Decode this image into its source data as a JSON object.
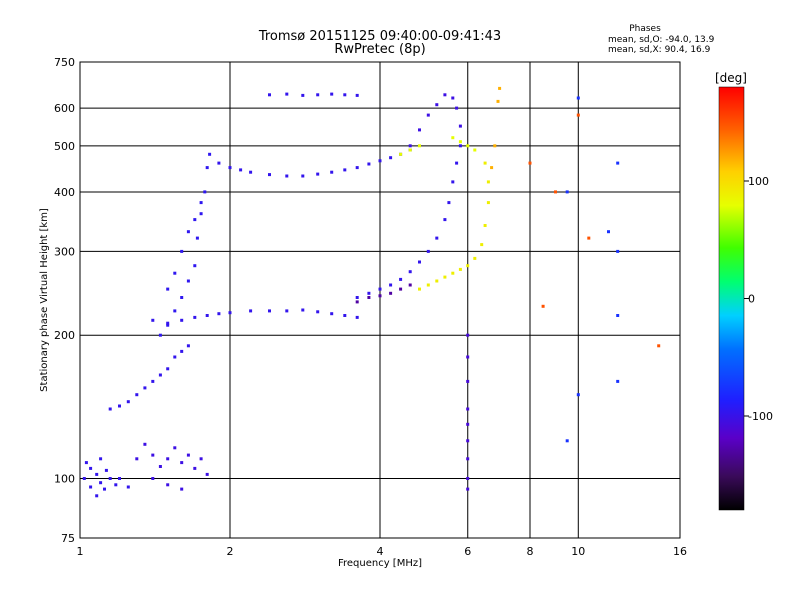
{
  "chart_data": {
    "type": "scatter",
    "title": "Tromsø 20151125 09:40:00-09:41:43",
    "subtitle": "RwPretec (8p)",
    "xlabel": "Frequency [MHz]",
    "ylabel": "Stationary phase Virtual Height [km]",
    "x_scale": "log",
    "y_scale": "log",
    "xlim": [
      1,
      16
    ],
    "ylim": [
      75,
      750
    ],
    "x_ticks": [
      1,
      2,
      4,
      6,
      8,
      10,
      16
    ],
    "x_tick_labels": [
      "1",
      "2",
      "4",
      "6",
      "8",
      "10",
      "16"
    ],
    "y_ticks": [
      75,
      100,
      200,
      300,
      400,
      500,
      600,
      750
    ],
    "y_tick_labels": [
      "75",
      "100",
      "200",
      "300",
      "400",
      "500",
      "600",
      "750"
    ],
    "grid": true,
    "stats": {
      "heading": "Phases",
      "line_o": "mean, sd,O: -94.0, 13.9",
      "line_x": "mean, sd,X:  90.4, 16.9"
    },
    "colorbar": {
      "label": "[deg]",
      "range": [
        -180,
        180
      ],
      "ticks": [
        100,
        0,
        -100
      ],
      "tick_labels": [
        "100",
        "0",
        "-100"
      ],
      "colormap": "rainbow (black-purple-blue-cyan-green-yellow-red)"
    },
    "clusters": [
      {
        "points": [
          [
            1.02,
            100
          ],
          [
            1.05,
            96
          ],
          [
            1.08,
            102
          ],
          [
            1.1,
            98
          ],
          [
            1.12,
            95
          ],
          [
            1.15,
            100
          ],
          [
            1.05,
            105
          ],
          [
            1.08,
            92
          ],
          [
            1.13,
            104
          ],
          [
            1.18,
            97
          ],
          [
            1.03,
            108
          ],
          [
            1.1,
            110
          ],
          [
            1.2,
            100
          ],
          [
            1.25,
            96
          ]
        ],
        "phase": -100
      },
      {
        "points": [
          [
            1.3,
            110
          ],
          [
            1.35,
            118
          ],
          [
            1.4,
            112
          ],
          [
            1.45,
            106
          ],
          [
            1.5,
            110
          ],
          [
            1.55,
            116
          ],
          [
            1.6,
            108
          ],
          [
            1.65,
            112
          ],
          [
            1.7,
            105
          ],
          [
            1.75,
            110
          ],
          [
            1.8,
            102
          ],
          [
            1.4,
            100
          ],
          [
            1.5,
            97
          ],
          [
            1.6,
            95
          ]
        ],
        "phase": -105
      },
      {
        "points": [
          [
            1.15,
            140
          ],
          [
            1.2,
            142
          ],
          [
            1.25,
            145
          ],
          [
            1.3,
            150
          ],
          [
            1.35,
            155
          ],
          [
            1.4,
            160
          ],
          [
            1.45,
            165
          ],
          [
            1.5,
            170
          ],
          [
            1.55,
            180
          ],
          [
            1.6,
            185
          ],
          [
            1.65,
            190
          ]
        ],
        "phase": -100
      },
      {
        "points": [
          [
            1.45,
            200
          ],
          [
            1.5,
            210
          ],
          [
            1.55,
            225
          ],
          [
            1.6,
            240
          ],
          [
            1.65,
            260
          ],
          [
            1.7,
            280
          ],
          [
            1.72,
            320
          ],
          [
            1.75,
            360
          ],
          [
            1.78,
            400
          ],
          [
            1.8,
            450
          ],
          [
            1.82,
            480
          ],
          [
            1.5,
            250
          ],
          [
            1.55,
            270
          ],
          [
            1.6,
            300
          ],
          [
            1.65,
            330
          ],
          [
            1.7,
            350
          ],
          [
            1.75,
            380
          ]
        ],
        "phase": -98
      },
      {
        "points": [
          [
            1.4,
            215
          ],
          [
            1.5,
            212
          ],
          [
            1.6,
            215
          ],
          [
            1.7,
            218
          ],
          [
            1.8,
            220
          ],
          [
            1.9,
            222
          ],
          [
            2.0,
            223
          ],
          [
            2.2,
            225
          ],
          [
            2.4,
            225
          ],
          [
            2.6,
            225
          ],
          [
            2.8,
            226
          ],
          [
            3.0,
            224
          ],
          [
            3.2,
            222
          ],
          [
            3.4,
            220
          ],
          [
            3.6,
            218
          ]
        ],
        "phase": -100
      },
      {
        "points": [
          [
            1.9,
            460
          ],
          [
            2.0,
            450
          ],
          [
            2.1,
            445
          ],
          [
            2.2,
            440
          ],
          [
            2.4,
            435
          ],
          [
            2.6,
            432
          ],
          [
            2.8,
            432
          ],
          [
            3.0,
            436
          ],
          [
            3.2,
            440
          ],
          [
            3.4,
            445
          ],
          [
            3.6,
            450
          ],
          [
            3.8,
            458
          ],
          [
            4.0,
            465
          ],
          [
            4.2,
            472
          ],
          [
            4.4,
            480
          ],
          [
            4.6,
            490
          ]
        ],
        "phase": -100
      },
      {
        "points": [
          [
            2.4,
            640
          ],
          [
            2.6,
            642
          ],
          [
            2.8,
            638
          ],
          [
            3.0,
            640
          ],
          [
            3.2,
            642
          ],
          [
            3.4,
            640
          ],
          [
            3.6,
            638
          ]
        ],
        "phase": -100
      },
      {
        "points": [
          [
            4.6,
            500
          ],
          [
            4.8,
            540
          ],
          [
            5.0,
            580
          ],
          [
            5.2,
            610
          ],
          [
            5.4,
            640
          ],
          [
            5.6,
            630
          ],
          [
            5.7,
            600
          ],
          [
            5.8,
            550
          ]
        ],
        "phase": -105
      },
      {
        "points": [
          [
            3.6,
            240
          ],
          [
            3.8,
            245
          ],
          [
            4.0,
            250
          ],
          [
            4.2,
            255
          ],
          [
            4.4,
            262
          ],
          [
            4.6,
            272
          ],
          [
            4.8,
            285
          ],
          [
            5.0,
            300
          ],
          [
            5.2,
            320
          ],
          [
            5.4,
            350
          ],
          [
            5.5,
            380
          ],
          [
            5.6,
            420
          ],
          [
            5.7,
            460
          ],
          [
            5.8,
            500
          ]
        ],
        "phase": -100
      },
      {
        "points": [
          [
            3.6,
            235
          ],
          [
            3.8,
            240
          ],
          [
            4.0,
            242
          ],
          [
            4.2,
            245
          ],
          [
            4.4,
            250
          ],
          [
            4.6,
            255
          ]
        ],
        "phase": -130
      },
      {
        "points": [
          [
            4.8,
            250
          ],
          [
            5.0,
            255
          ],
          [
            5.2,
            260
          ],
          [
            5.4,
            265
          ],
          [
            5.6,
            270
          ],
          [
            5.8,
            275
          ],
          [
            6.0,
            280
          ],
          [
            6.2,
            290
          ],
          [
            6.4,
            310
          ],
          [
            6.5,
            340
          ],
          [
            6.6,
            380
          ],
          [
            6.6,
            420
          ],
          [
            6.5,
            460
          ]
        ],
        "phase": 90
      },
      {
        "points": [
          [
            5.6,
            520
          ],
          [
            5.8,
            510
          ],
          [
            6.0,
            500
          ],
          [
            6.2,
            490
          ],
          [
            4.4,
            480
          ],
          [
            4.6,
            490
          ],
          [
            4.8,
            500
          ]
        ],
        "phase": 80
      },
      {
        "points": [
          [
            6.0,
            100
          ],
          [
            6.0,
            110
          ],
          [
            6.0,
            120
          ],
          [
            6.0,
            130
          ],
          [
            6.0,
            140
          ],
          [
            6.0,
            160
          ],
          [
            6.0,
            180
          ],
          [
            6.0,
            200
          ],
          [
            6.0,
            95
          ]
        ],
        "phase": -110
      },
      {
        "points": [
          [
            6.9,
            620
          ],
          [
            6.95,
            660
          ],
          [
            6.8,
            500
          ],
          [
            6.7,
            450
          ]
        ],
        "phase": 120
      },
      {
        "points": [
          [
            10.0,
            630
          ],
          [
            9.5,
            400
          ],
          [
            10.0,
            150
          ],
          [
            9.5,
            120
          ],
          [
            12.0,
            460
          ],
          [
            12.0,
            300
          ],
          [
            11.5,
            330
          ],
          [
            12.0,
            220
          ],
          [
            12.0,
            160
          ]
        ],
        "phase": -80
      },
      {
        "points": [
          [
            8.5,
            230
          ],
          [
            9.0,
            400
          ],
          [
            10.0,
            580
          ],
          [
            14.5,
            190
          ],
          [
            8.0,
            460
          ],
          [
            10.5,
            320
          ]
        ],
        "phase": 150
      }
    ]
  }
}
